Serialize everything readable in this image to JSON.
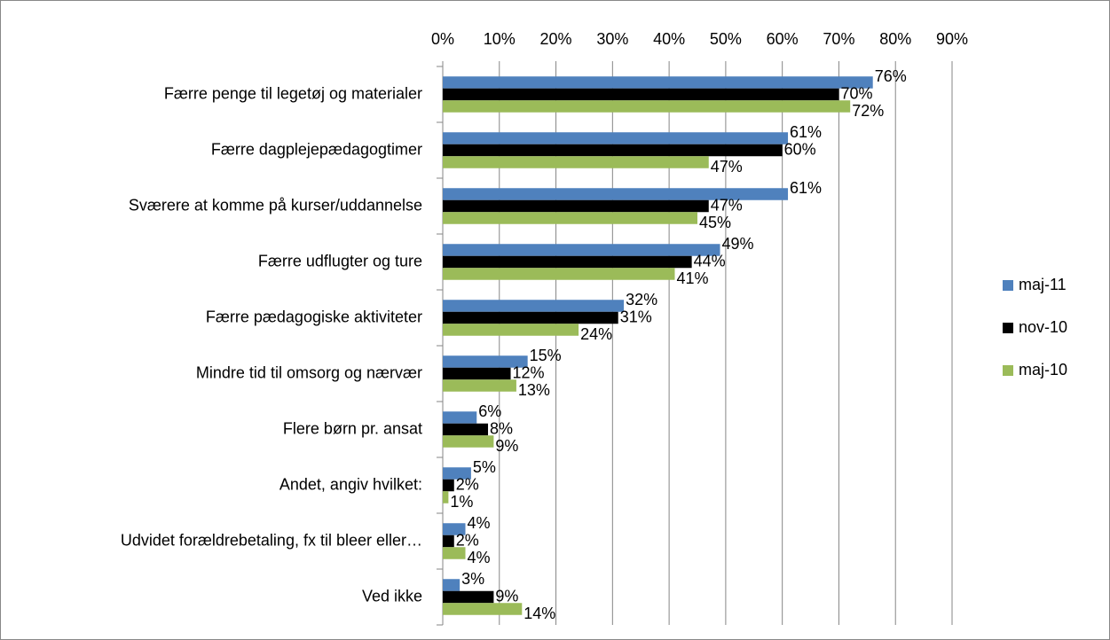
{
  "chart_data": {
    "type": "bar",
    "orientation": "horizontal",
    "categories": [
      "Færre penge til legetøj og materialer",
      "Færre dagplejepædagogtimer",
      "Sværere at komme på kurser/uddannelse",
      "Færre udflugter og ture",
      "Færre pædagogiske aktiviteter",
      "Mindre tid til omsorg og nærvær",
      "Flere børn pr. ansat",
      "Andet, angiv hvilket:",
      "Udvidet forældrebetaling, fx til bleer eller…",
      "Ved ikke"
    ],
    "series": [
      {
        "name": "maj-11",
        "color": "#4f81bd",
        "values": [
          76,
          61,
          61,
          49,
          32,
          15,
          6,
          5,
          4,
          3
        ],
        "value_labels": [
          "76%",
          "61%",
          "61%",
          "49%",
          "32%",
          "15%",
          "6%",
          "5%",
          "4%",
          "3%"
        ]
      },
      {
        "name": "nov-10",
        "color": "#000000",
        "values": [
          70,
          60,
          47,
          44,
          31,
          12,
          8,
          2,
          2,
          9
        ],
        "value_labels": [
          "70%",
          "60%",
          "47%",
          "44%",
          "31%",
          "12%",
          "8%",
          "2%",
          "2%",
          "9%"
        ]
      },
      {
        "name": "maj-10",
        "color": "#9bbb59",
        "values": [
          72,
          47,
          45,
          41,
          24,
          13,
          9,
          1,
          4,
          14
        ],
        "value_labels": [
          "72%",
          "47%",
          "45%",
          "41%",
          "24%",
          "13%",
          "9%",
          "1%",
          "4%",
          "14%"
        ]
      }
    ],
    "xlim": [
      0,
      90
    ],
    "xticks": [
      {
        "value": 0,
        "label": "0%"
      },
      {
        "value": 10,
        "label": "10%"
      },
      {
        "value": 20,
        "label": "20%"
      },
      {
        "value": 30,
        "label": "30%"
      },
      {
        "value": 40,
        "label": "40%"
      },
      {
        "value": 50,
        "label": "50%"
      },
      {
        "value": 60,
        "label": "60%"
      },
      {
        "value": 70,
        "label": "70%"
      },
      {
        "value": 80,
        "label": "80%"
      },
      {
        "value": 90,
        "label": "90%"
      }
    ],
    "grid": true,
    "legend": "right"
  }
}
